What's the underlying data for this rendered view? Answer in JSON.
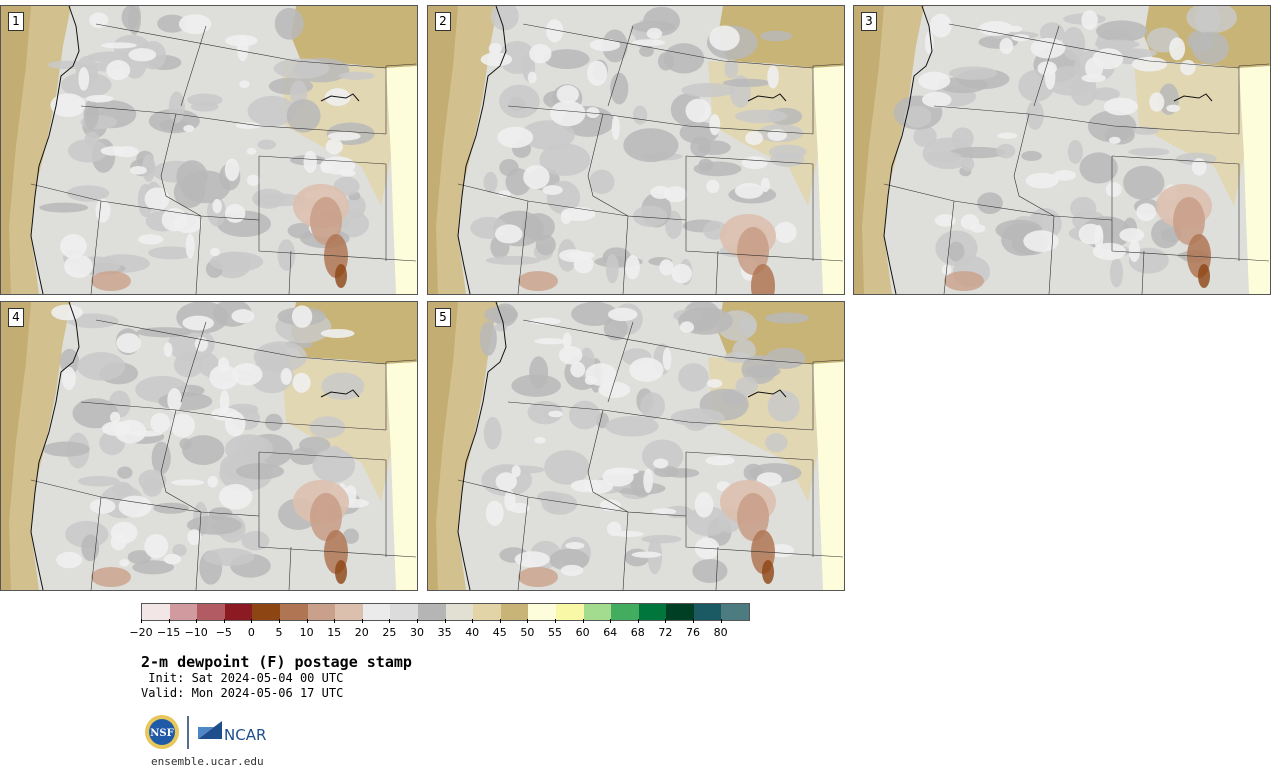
{
  "panels": [
    {
      "label": "1"
    },
    {
      "label": "2"
    },
    {
      "label": "3"
    },
    {
      "label": "4"
    },
    {
      "label": "5"
    }
  ],
  "colorbar": {
    "colors": [
      "#f3e6e6",
      "#d09a9f",
      "#b35b63",
      "#8b1a22",
      "#8c4513",
      "#b07653",
      "#c9a08a",
      "#dcc0ae",
      "#ebebeb",
      "#dcdcdc",
      "#b5b5b5",
      "#e2e0d3",
      "#e3d4a8",
      "#c9b477",
      "#fdfddb",
      "#f8f8a6",
      "#a3dc8e",
      "#43ad5f",
      "#00753c",
      "#003f23",
      "#1b5963",
      "#4d7c80"
    ],
    "ticks": [
      "−20",
      "−15",
      "−10",
      "−5",
      "0",
      "5",
      "10",
      "15",
      "20",
      "25",
      "30",
      "35",
      "40",
      "45",
      "50",
      "55",
      "60",
      "64",
      "68",
      "72",
      "76",
      "80"
    ]
  },
  "title": "2-m dewpoint (F) postage stamp",
  "init": " Init: Sat 2024-05-04 00 UTC",
  "valid": "Valid: Mon 2024-05-06 17 UTC",
  "logo": {
    "nsf": "NSF",
    "ncar": "NCAR"
  },
  "site": "ensemble.ucar.edu"
}
